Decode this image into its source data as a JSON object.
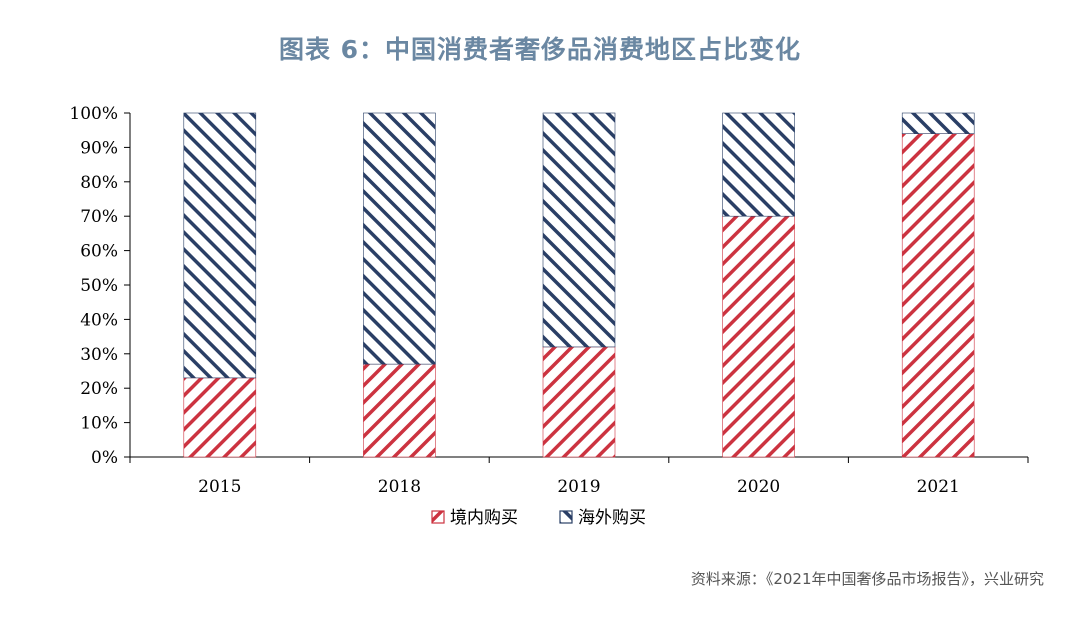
{
  "title": "图表 6：中国消费者奢侈品消费地区占比变化",
  "source": "资料来源：《2021年中国奢侈品市场报告》，兴业研究",
  "colors": {
    "domestic": "#cc3340",
    "overseas": "#2a3f66",
    "title": "#6a87a2"
  },
  "chart_data": {
    "type": "bar",
    "stacked": true,
    "categories": [
      "2015",
      "2018",
      "2019",
      "2020",
      "2021"
    ],
    "series": [
      {
        "name": "境内购买",
        "values": [
          23,
          27,
          32,
          70,
          94
        ]
      },
      {
        "name": "海外购买",
        "values": [
          77,
          73,
          68,
          30,
          6
        ]
      }
    ],
    "ylim": [
      0,
      100
    ],
    "yticks": [
      "0%",
      "10%",
      "20%",
      "30%",
      "40%",
      "50%",
      "60%",
      "70%",
      "80%",
      "90%",
      "100%"
    ],
    "legend_position": "bottom",
    "grid": false
  }
}
